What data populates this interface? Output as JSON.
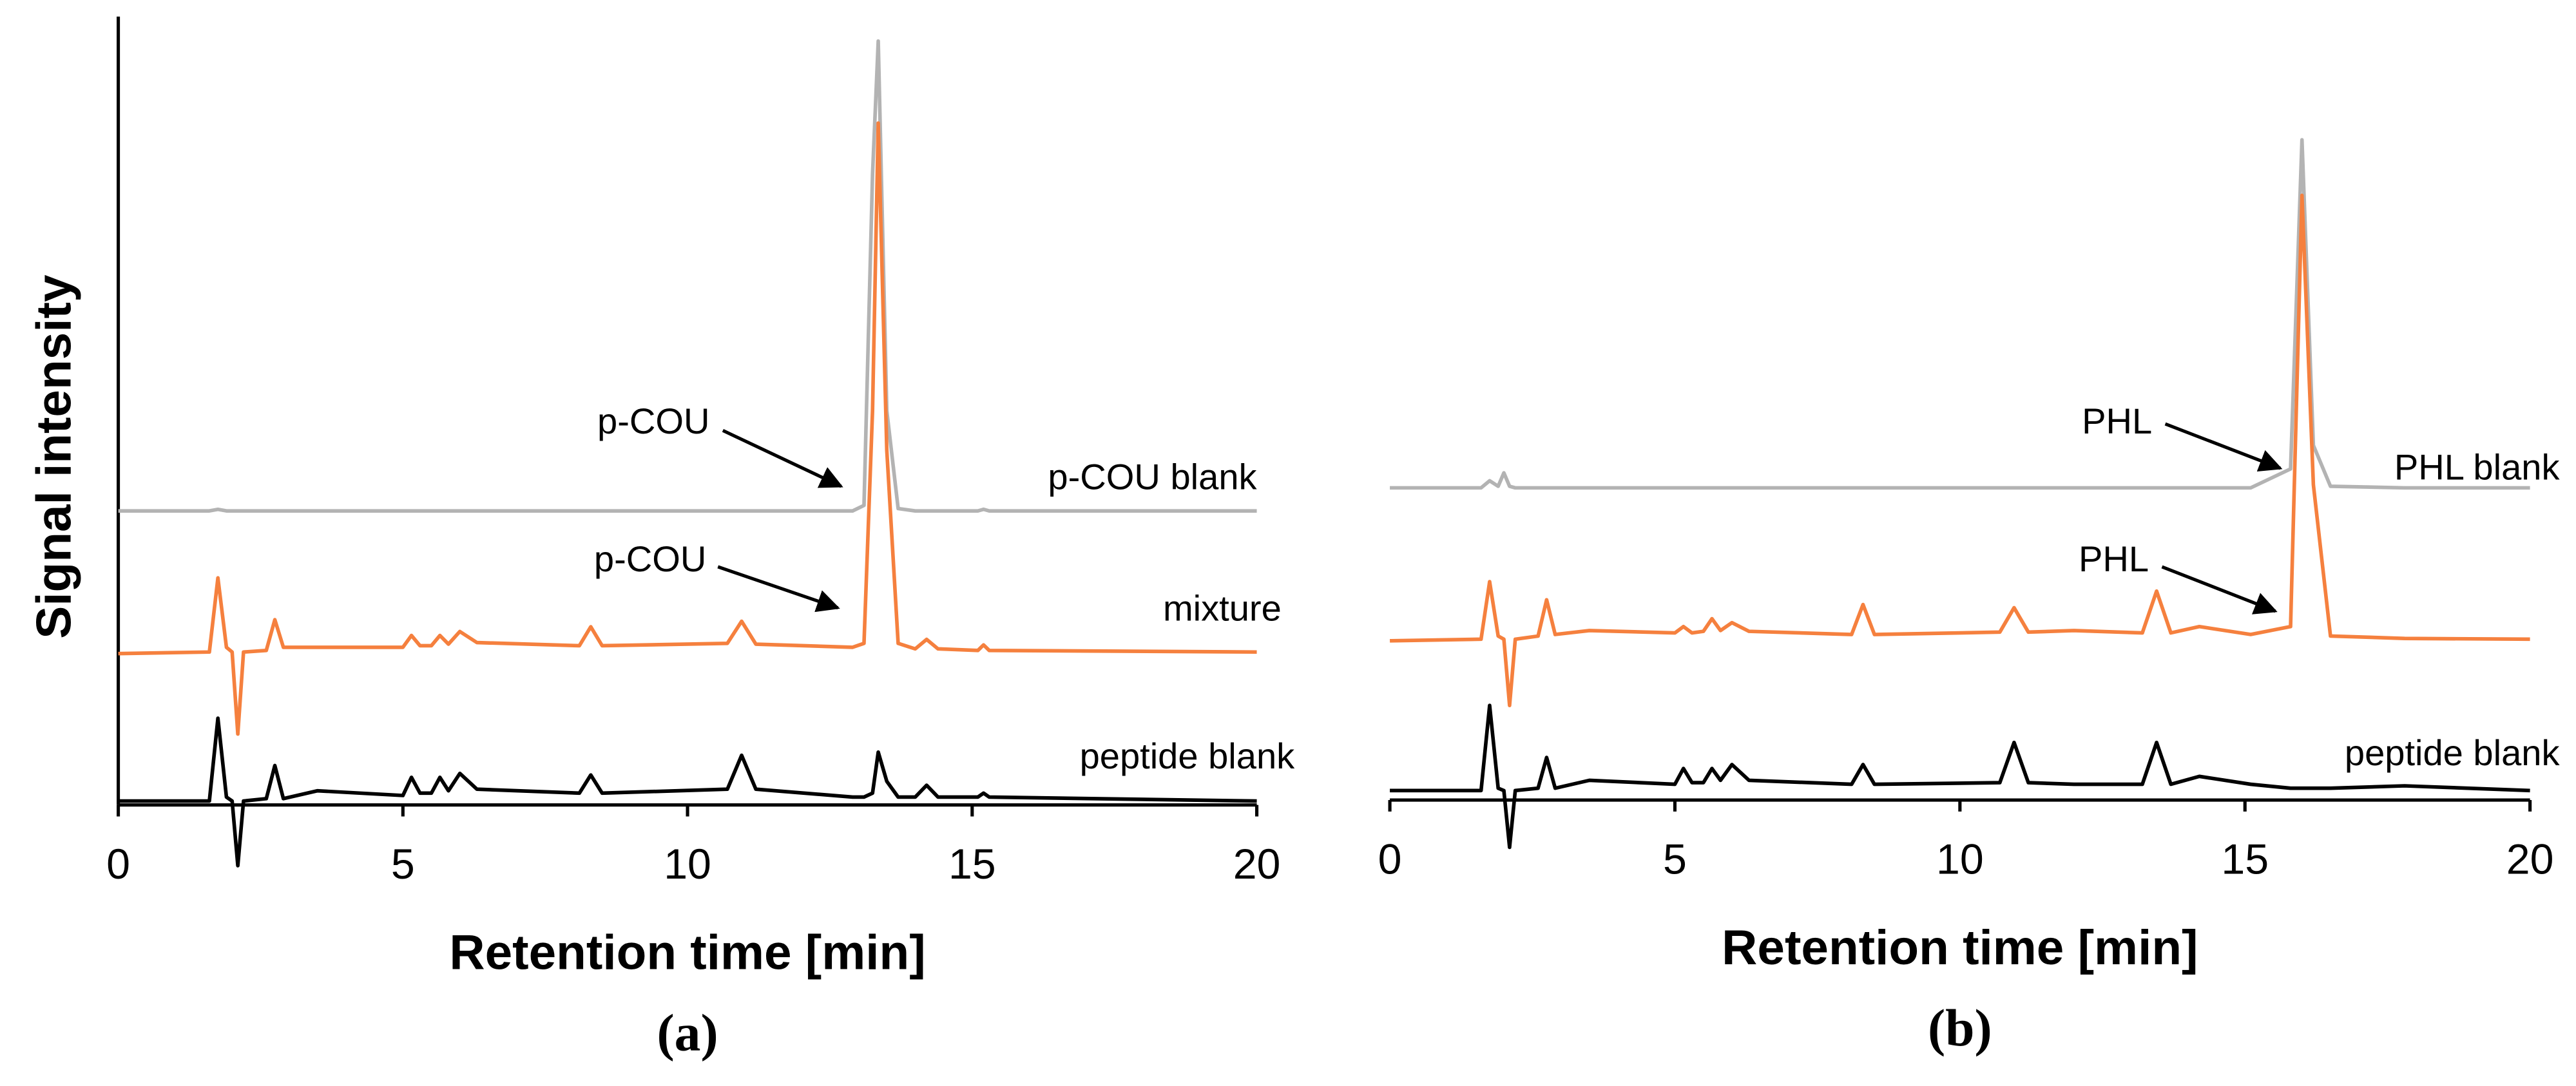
{
  "chart_data": [
    {
      "type": "line",
      "label": "(a)",
      "xlabel": "Retention time [min]",
      "ylabel": "Signal intensity",
      "y_axis_line": true,
      "xlim": [
        0,
        20
      ],
      "xticks": [
        0,
        5,
        10,
        15,
        20
      ],
      "ylim": [
        0,
        100
      ],
      "x": [
        0,
        1.6,
        1.75,
        1.9,
        2.0,
        2.1,
        2.2,
        2.6,
        2.75,
        2.9,
        3.5,
        5.0,
        5.15,
        5.3,
        5.5,
        5.65,
        5.8,
        6.0,
        6.3,
        8.1,
        8.3,
        8.5,
        10.7,
        10.95,
        11.2,
        12.9,
        13.1,
        13.25,
        13.35,
        13.5,
        13.7,
        14.0,
        14.2,
        14.4,
        15.1,
        15.2,
        15.3,
        20
      ],
      "series": [
        {
          "name": "p-COU blank",
          "color": "#b3b3b3",
          "values": [
            37.3,
            37.3,
            37.5,
            37.3,
            37.3,
            37.3,
            37.3,
            37.3,
            37.3,
            37.3,
            37.3,
            37.3,
            37.3,
            37.3,
            37.3,
            37.3,
            37.3,
            37.3,
            37.3,
            37.3,
            37.3,
            37.3,
            37.3,
            37.3,
            37.3,
            37.3,
            38,
            80,
            96.9,
            50,
            37.6,
            37.3,
            37.3,
            37.3,
            37.3,
            37.5,
            37.3,
            37.3
          ]
        },
        {
          "name": "mixture",
          "color": "#f5803e",
          "values": [
            19.2,
            19.4,
            28.8,
            20,
            19.4,
            9,
            19.4,
            19.6,
            23.5,
            20,
            20,
            20,
            21.5,
            20.2,
            20.2,
            21.5,
            20.4,
            22,
            20.6,
            20.2,
            22.6,
            20.2,
            20.5,
            23.3,
            20.4,
            20,
            20.5,
            50,
            86.5,
            45,
            20.5,
            19.8,
            21,
            19.8,
            19.6,
            20.3,
            19.6,
            19.4
          ]
        },
        {
          "name": "peptide blank",
          "color": "#000000",
          "values": [
            0.5,
            0.5,
            11,
            1,
            0.5,
            -7.7,
            0.5,
            0.8,
            5,
            0.8,
            1.8,
            1.2,
            3.5,
            1.5,
            1.5,
            3.5,
            1.8,
            4,
            2,
            1.5,
            3.8,
            1.5,
            2,
            6.3,
            2,
            1,
            1,
            1.5,
            6.7,
            3,
            1,
            1,
            2.5,
            1,
            1,
            1.5,
            1,
            0.5
          ]
        }
      ],
      "annotations": [
        "p-COU",
        "p-COU"
      ]
    },
    {
      "type": "line",
      "label": "(b)",
      "xlabel": "Retention time [min]",
      "y_axis_line": false,
      "xlim": [
        0,
        20
      ],
      "xticks": [
        0,
        5,
        10,
        15,
        20
      ],
      "ylim": [
        0,
        100
      ],
      "x": [
        0,
        1.6,
        1.75,
        1.9,
        2.0,
        2.1,
        2.2,
        2.6,
        2.75,
        2.9,
        3.5,
        5.0,
        5.15,
        5.3,
        5.5,
        5.65,
        5.8,
        6.0,
        6.3,
        8.1,
        8.3,
        8.5,
        10.7,
        10.95,
        11.2,
        12.0,
        13.2,
        13.45,
        13.7,
        14.2,
        15.1,
        15.8,
        16.0,
        16.2,
        16.5,
        17.8,
        20
      ],
      "series": [
        {
          "name": "PHL blank",
          "color": "#b3b3b3",
          "values": [
            39.6,
            39.6,
            40.5,
            39.8,
            41.5,
            39.8,
            39.6,
            39.6,
            39.6,
            39.6,
            39.6,
            39.6,
            39.6,
            39.6,
            39.6,
            39.6,
            39.6,
            39.6,
            39.6,
            39.6,
            39.6,
            39.6,
            39.6,
            39.6,
            39.6,
            39.6,
            39.6,
            39.6,
            39.6,
            39.6,
            39.6,
            42,
            83.75,
            45,
            39.8,
            39.6,
            39.6
          ]
        },
        {
          "name": "mixture",
          "color": "#f5803e",
          "values": [
            20.2,
            20.4,
            27.7,
            20.8,
            20.4,
            12,
            20.4,
            20.8,
            25.4,
            21,
            21.5,
            21.2,
            22,
            21.2,
            21.4,
            23,
            21.5,
            22.5,
            21.4,
            21,
            24.8,
            21,
            21.3,
            24.4,
            21.3,
            21.5,
            21.2,
            26.5,
            21.2,
            22,
            21,
            22,
            76.7,
            40,
            20.8,
            20.5,
            20.4
          ]
        },
        {
          "name": "peptide blank",
          "color": "#000000",
          "values": [
            1.2,
            1.2,
            12,
            1.5,
            1.2,
            -6,
            1.2,
            1.5,
            5.4,
            1.5,
            2.5,
            2,
            4,
            2.2,
            2.2,
            4,
            2.5,
            4.5,
            2.5,
            2,
            4.5,
            2,
            2.2,
            7.3,
            2.2,
            2,
            2,
            7.3,
            2,
            3,
            2,
            1.5,
            1.5,
            1.5,
            1.5,
            1.8,
            1.2
          ]
        }
      ],
      "annotations": [
        "PHL",
        "PHL"
      ]
    }
  ]
}
